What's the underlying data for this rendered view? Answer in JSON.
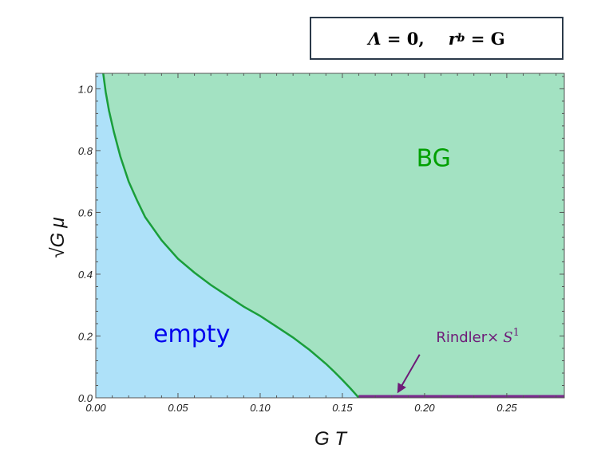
{
  "header_box": {
    "lambda_sym": "Λ",
    "lambda_eq": "= 0,",
    "r_sym": "r",
    "r_sub": "b",
    "r_eq": "= G"
  },
  "chart_data": {
    "type": "area",
    "xlabel": "G T",
    "ylabel_prefix": "√G",
    "ylabel_symbol": "μ",
    "xlim": [
      0.0,
      0.285
    ],
    "ylim": [
      0.0,
      1.05
    ],
    "xticks": [
      0.0,
      0.05,
      0.1,
      0.15,
      0.2,
      0.25
    ],
    "xtick_labels": [
      "0.00",
      "0.05",
      "0.10",
      "0.15",
      "0.20",
      "0.25"
    ],
    "yticks": [
      0.0,
      0.2,
      0.4,
      0.6,
      0.8,
      1.0
    ],
    "ytick_labels": [
      "0.0",
      "0.2",
      "0.4",
      "0.6",
      "0.8",
      "1.0"
    ],
    "grid": false,
    "phase_boundary": {
      "x": [
        0.0045,
        0.006,
        0.008,
        0.011,
        0.015,
        0.02,
        0.025,
        0.03,
        0.04,
        0.05,
        0.06,
        0.07,
        0.08,
        0.09,
        0.1,
        0.11,
        0.12,
        0.13,
        0.14,
        0.145,
        0.15,
        0.155,
        0.158,
        0.16
      ],
      "y": [
        1.05,
        0.99,
        0.93,
        0.86,
        0.78,
        0.7,
        0.64,
        0.585,
        0.51,
        0.45,
        0.405,
        0.365,
        0.33,
        0.295,
        0.265,
        0.23,
        0.195,
        0.155,
        0.11,
        0.085,
        0.058,
        0.03,
        0.012,
        0.0
      ]
    },
    "rindler_segment": {
      "x": [
        0.16,
        0.285
      ],
      "y": 0.0
    },
    "regions": [
      {
        "label": "empty",
        "color": "#aee1f9",
        "text_color": "#0000ee",
        "at": [
          0.035,
          0.18
        ]
      },
      {
        "label": "BG",
        "color": "#a3e2c2",
        "text_color": "#00a000",
        "at": [
          0.195,
          0.75
        ]
      }
    ],
    "annotation": {
      "text": "Rindler×",
      "math": "S",
      "math_sup": "1",
      "color": "#6e1a78",
      "text_at": [
        0.207,
        0.18
      ],
      "arrow_from": [
        0.197,
        0.14
      ],
      "arrow_to": [
        0.184,
        0.02
      ]
    },
    "colors": {
      "boundary": "#1a9e3a",
      "rindler": "#7a2a8c",
      "frame": "#555555"
    }
  }
}
